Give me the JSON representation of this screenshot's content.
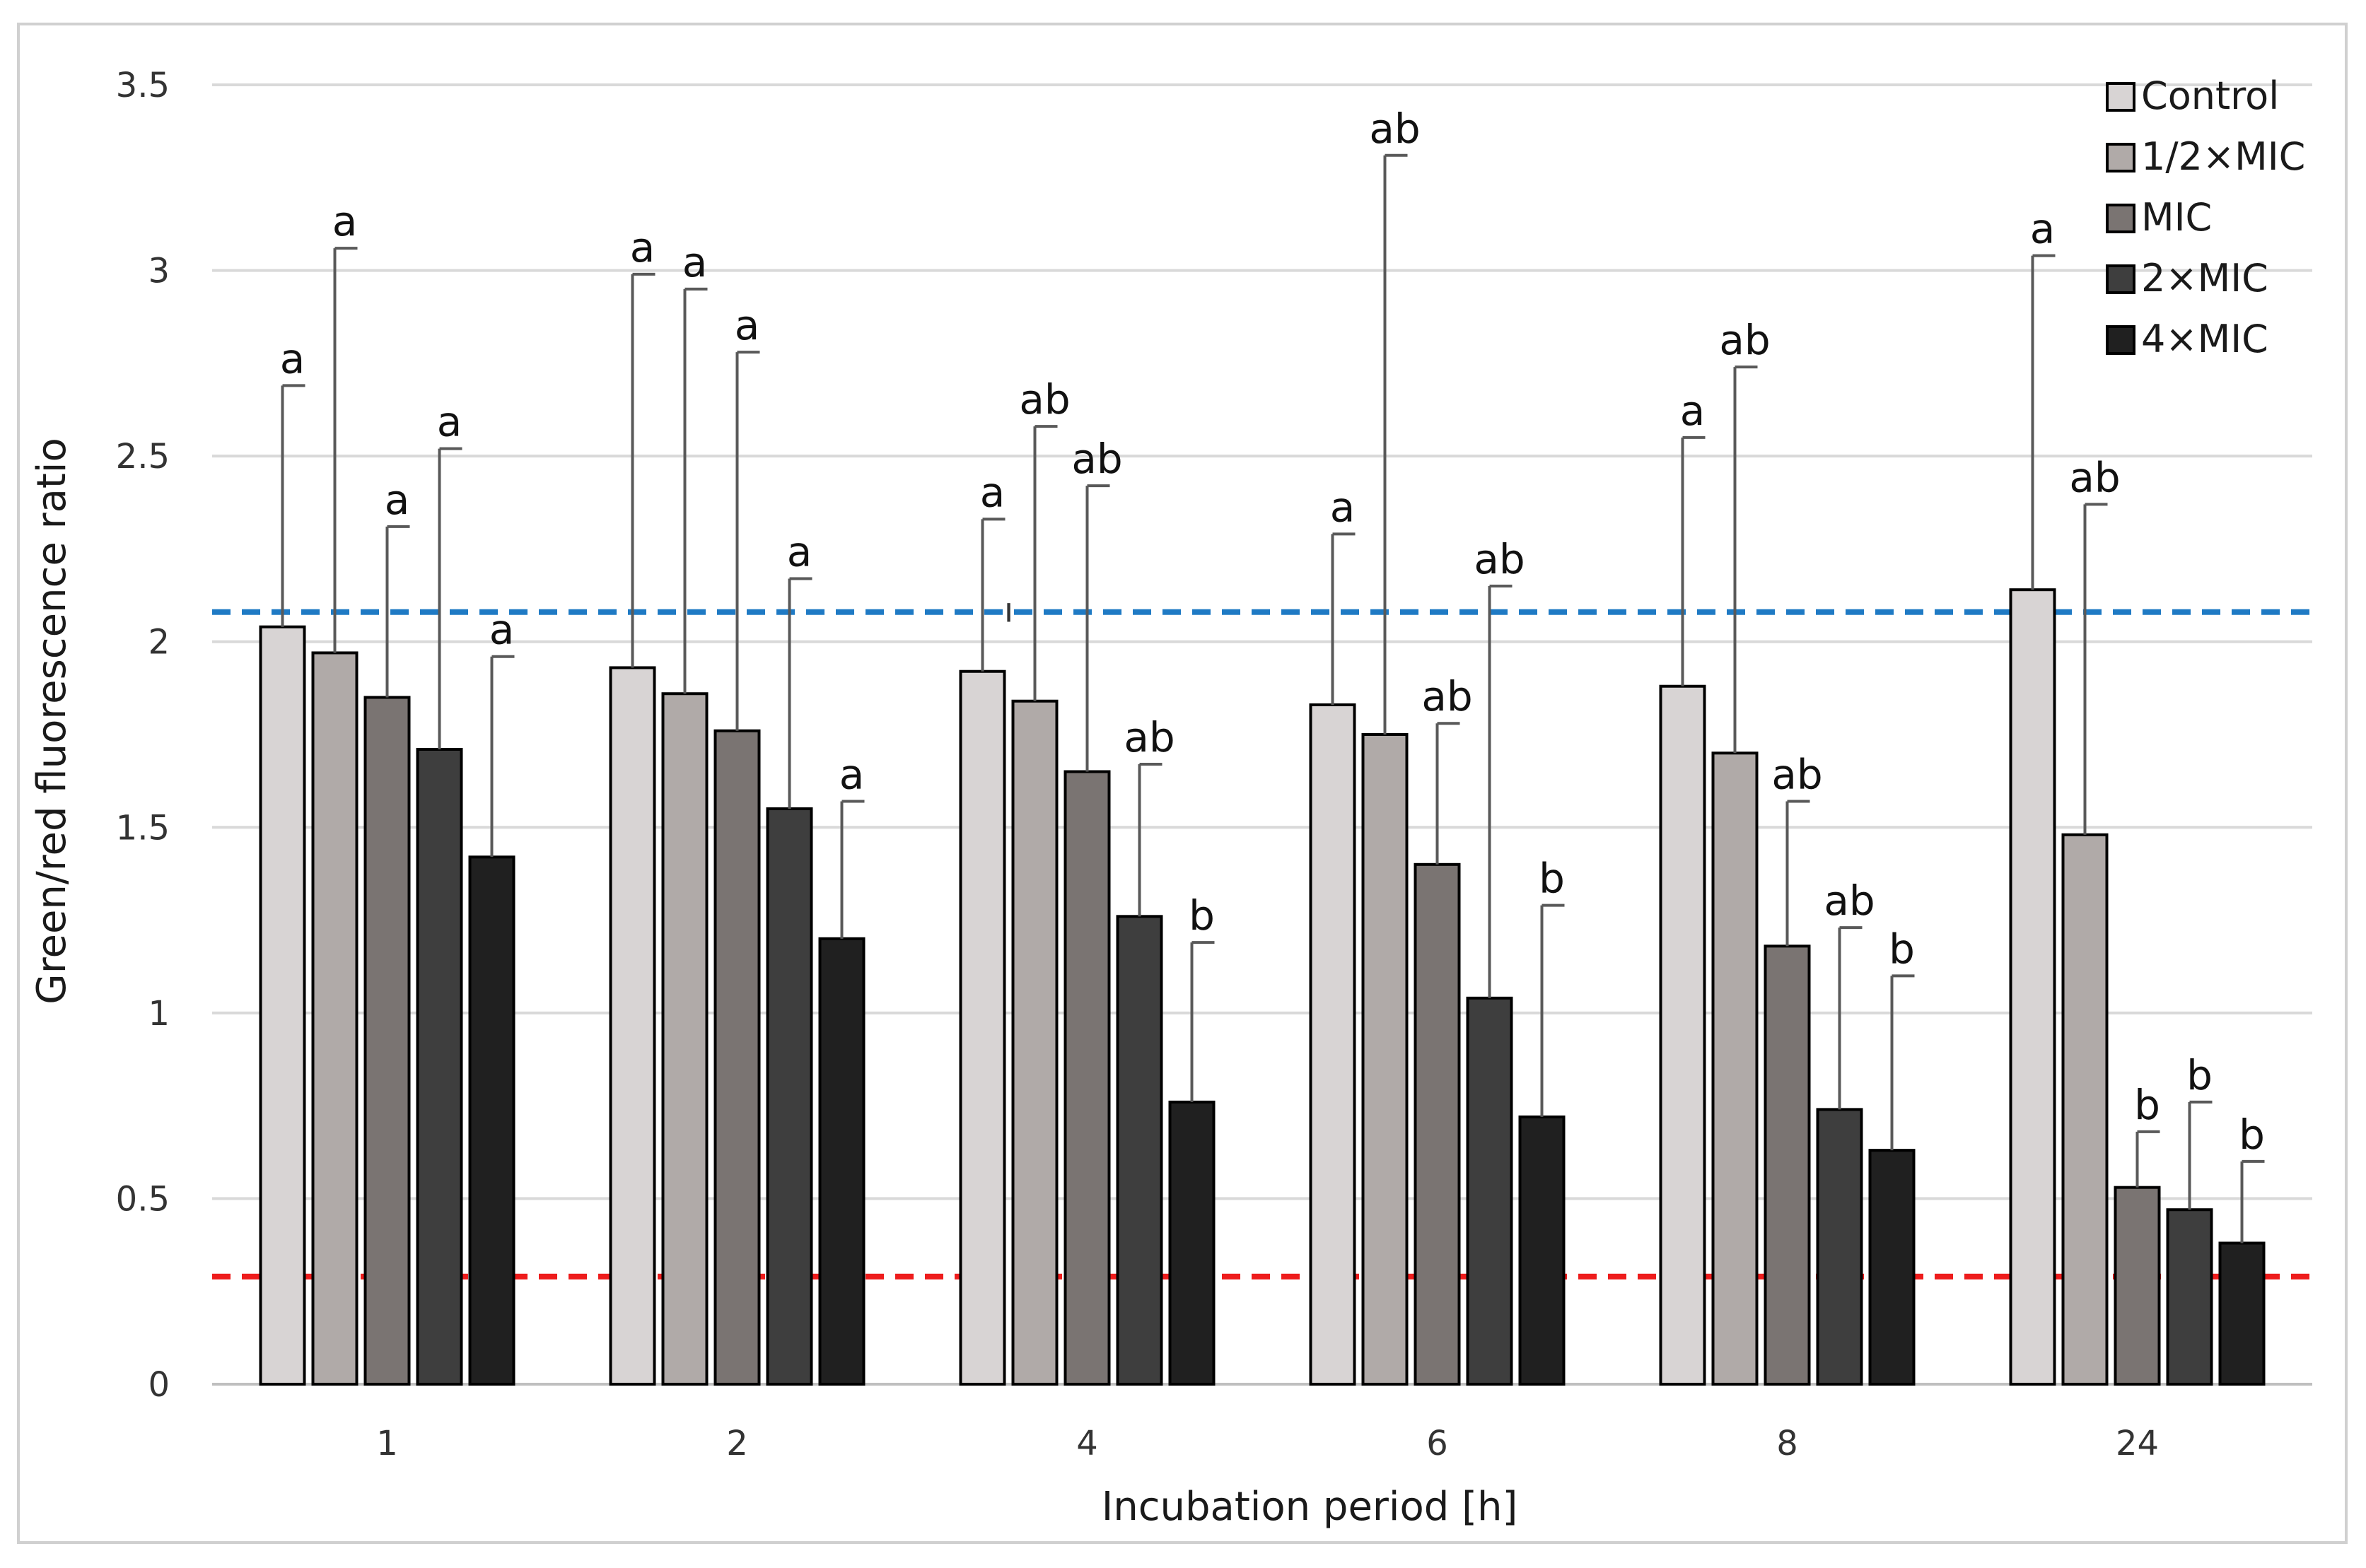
{
  "chart_data": {
    "type": "bar",
    "title": "",
    "xlabel": "Incubation period [h]",
    "ylabel": "Green/red fluorescence ratio",
    "ylim": [
      0,
      3.5
    ],
    "yticks": [
      "0",
      "0.5",
      "1",
      "1.5",
      "2",
      "2.5",
      "3",
      "3.5"
    ],
    "grid": true,
    "legend_position": "top-right",
    "categories": [
      "1",
      "2",
      "4",
      "6",
      "8",
      "24"
    ],
    "series": [
      {
        "name": "Control",
        "color": "#d8d4d4",
        "values": [
          2.04,
          1.93,
          1.92,
          1.83,
          1.88,
          2.14
        ],
        "errors": [
          0.65,
          1.06,
          0.41,
          0.46,
          0.67,
          0.9
        ],
        "letters": [
          "a",
          "a",
          "a",
          "a",
          "a",
          "a"
        ]
      },
      {
        "name": "1/2×MIC",
        "color": "#b0aaa8",
        "values": [
          1.97,
          1.86,
          1.84,
          1.75,
          1.7,
          1.48
        ],
        "errors": [
          1.09,
          1.09,
          0.74,
          1.56,
          1.04,
          0.89
        ],
        "letters": [
          "a",
          "a",
          "ab",
          "ab",
          "ab",
          "ab"
        ]
      },
      {
        "name": "MIC",
        "color": "#7a7472",
        "values": [
          1.85,
          1.76,
          1.65,
          1.4,
          1.18,
          0.53
        ],
        "errors": [
          0.46,
          1.02,
          0.77,
          0.38,
          0.39,
          0.15
        ],
        "letters": [
          "a",
          "a",
          "ab",
          "ab",
          "ab",
          "b"
        ]
      },
      {
        "name": "2×MIC",
        "color": "#3e3e3e",
        "values": [
          1.71,
          1.55,
          1.26,
          1.04,
          0.74,
          0.47
        ],
        "errors": [
          0.81,
          0.62,
          0.41,
          1.11,
          0.49,
          0.29
        ],
        "letters": [
          "a",
          "a",
          "ab",
          "ab",
          "ab",
          "b"
        ]
      },
      {
        "name": "4×MIC",
        "color": "#202020",
        "values": [
          1.42,
          1.2,
          0.76,
          0.72,
          0.63,
          0.38
        ],
        "errors": [
          0.54,
          0.37,
          0.43,
          0.57,
          0.47,
          0.22
        ],
        "letters": [
          "a",
          "a",
          "b",
          "b",
          "b",
          "b"
        ]
      }
    ],
    "reference_lines": [
      {
        "value": 2.08,
        "color": "#1f7ac4",
        "style": "dashed"
      },
      {
        "value": 0.29,
        "color": "#ee1c1c",
        "style": "dashed"
      }
    ],
    "annotations": [
      {
        "text": "ı",
        "category": "4",
        "y": 2.08
      }
    ]
  }
}
